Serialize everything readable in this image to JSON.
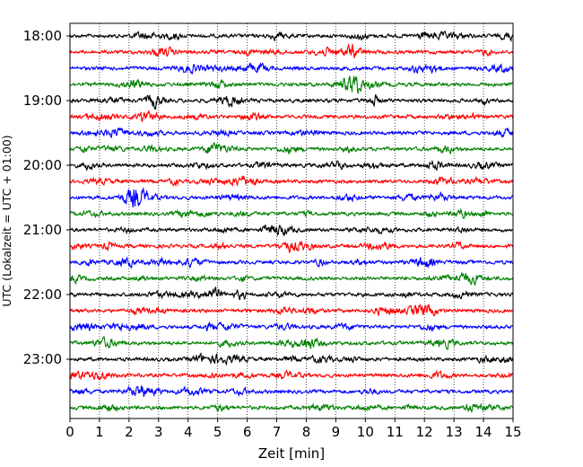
{
  "chart_data": {
    "type": "line",
    "subtype": "helicorder-seismogram",
    "xlabel": "Zeit  [min]",
    "ylabel": "UTC (Lokalzeit = UTC + 01:00)",
    "xlim": [
      0,
      15
    ],
    "x_ticks": [
      0,
      1,
      2,
      3,
      4,
      5,
      6,
      7,
      8,
      9,
      10,
      11,
      12,
      13,
      14,
      15
    ],
    "x_tick_labels": [
      "0",
      "1",
      "2",
      "3",
      "4",
      "5",
      "6",
      "7",
      "8",
      "9",
      "10",
      "11",
      "12",
      "13",
      "14",
      "15"
    ],
    "y_tick_labels": [
      "18:00",
      "19:00",
      "20:00",
      "21:00",
      "22:00",
      "23:00"
    ],
    "trace_interval_minutes": 15,
    "trace_start_times": [
      "18:00",
      "18:15",
      "18:30",
      "18:45",
      "19:00",
      "19:15",
      "19:30",
      "19:45",
      "20:00",
      "20:15",
      "20:30",
      "20:45",
      "21:00",
      "21:15",
      "21:30",
      "21:45",
      "22:00",
      "22:15",
      "22:30",
      "22:45",
      "23:00",
      "23:15",
      "23:30",
      "23:45"
    ],
    "trace_color_cycle": [
      "#000000",
      "#ff0000",
      "#0000ff",
      "#008000"
    ],
    "vertical_grid": "dotted",
    "horizontal_grid": false,
    "legend": false
  }
}
